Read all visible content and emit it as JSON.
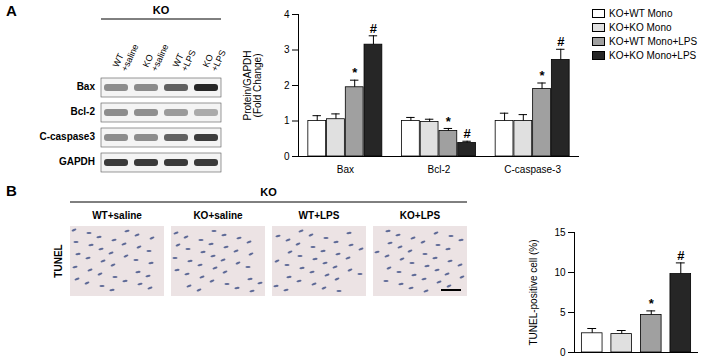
{
  "panel_labels": [
    "A",
    "B"
  ],
  "blot": {
    "title": "KO",
    "lanes": [
      "WT\n+saline",
      "KO\n+saline",
      "WT\n+LPS",
      "KO\n+LPS"
    ],
    "rows": [
      "Bax",
      "Bcl-2",
      "C-caspase3",
      "GAPDH"
    ]
  },
  "micrographs": {
    "title": "KO",
    "row_label": "TUNEL",
    "images": [
      "WT+saline",
      "KO+saline",
      "WT+LPS",
      "KO+LPS"
    ]
  },
  "chart_data": [
    {
      "type": "bar",
      "y_label": "Protein/GAPDH\n(Fold Change)",
      "categories": [
        "Bax",
        "Bcl-2",
        "C-caspase-3"
      ],
      "series": [
        {
          "name": "KO+WT Mono",
          "color": "#ffffff",
          "values": [
            1.0,
            1.0,
            1.0
          ],
          "errors": [
            0.15,
            0.1,
            0.22
          ]
        },
        {
          "name": "KO+KO Mono",
          "color": "#e0e0e0",
          "values": [
            1.05,
            0.97,
            1.0
          ],
          "errors": [
            0.15,
            0.08,
            0.18
          ]
        },
        {
          "name": "KO+WT Mono+LPS",
          "color": "#a0a0a0",
          "values": [
            1.95,
            0.72,
            1.9
          ],
          "errors": [
            0.2,
            0.07,
            0.17
          ]
        },
        {
          "name": "KO+KO Mono+LPS",
          "color": "#262626",
          "values": [
            3.15,
            0.38,
            2.72
          ],
          "errors": [
            0.25,
            0.05,
            0.3
          ]
        }
      ],
      "ylim": [
        0,
        4
      ],
      "yticks": [
        0,
        1,
        2,
        3,
        4
      ],
      "legend": "right",
      "annotations": [
        {
          "category": "Bax",
          "series": "KO+WT Mono+LPS",
          "text": "*"
        },
        {
          "category": "Bax",
          "series": "KO+KO Mono+LPS",
          "text": "#"
        },
        {
          "category": "Bcl-2",
          "series": "KO+WT Mono+LPS",
          "text": "*"
        },
        {
          "category": "Bcl-2",
          "series": "KO+KO Mono+LPS",
          "text": "#"
        },
        {
          "category": "C-caspase-3",
          "series": "KO+WT Mono+LPS",
          "text": "*"
        },
        {
          "category": "C-caspase-3",
          "series": "KO+KO Mono+LPS",
          "text": "#"
        }
      ]
    },
    {
      "type": "bar",
      "y_label": "TUNEL-positive cell (%)",
      "categories": [
        null,
        null,
        null,
        null
      ],
      "values": [
        2.4,
        2.3,
        4.7,
        9.8
      ],
      "errors": [
        0.6,
        0.45,
        0.5,
        1.4
      ],
      "colors": [
        "#ffffff",
        "#e0e0e0",
        "#a0a0a0",
        "#262626"
      ],
      "ylim": [
        0,
        15
      ],
      "yticks": [
        0,
        5,
        10,
        15
      ],
      "tick_labels": "y",
      "annotations": [
        {
          "index": 2,
          "text": "*"
        },
        {
          "index": 3,
          "text": "#"
        }
      ]
    }
  ]
}
